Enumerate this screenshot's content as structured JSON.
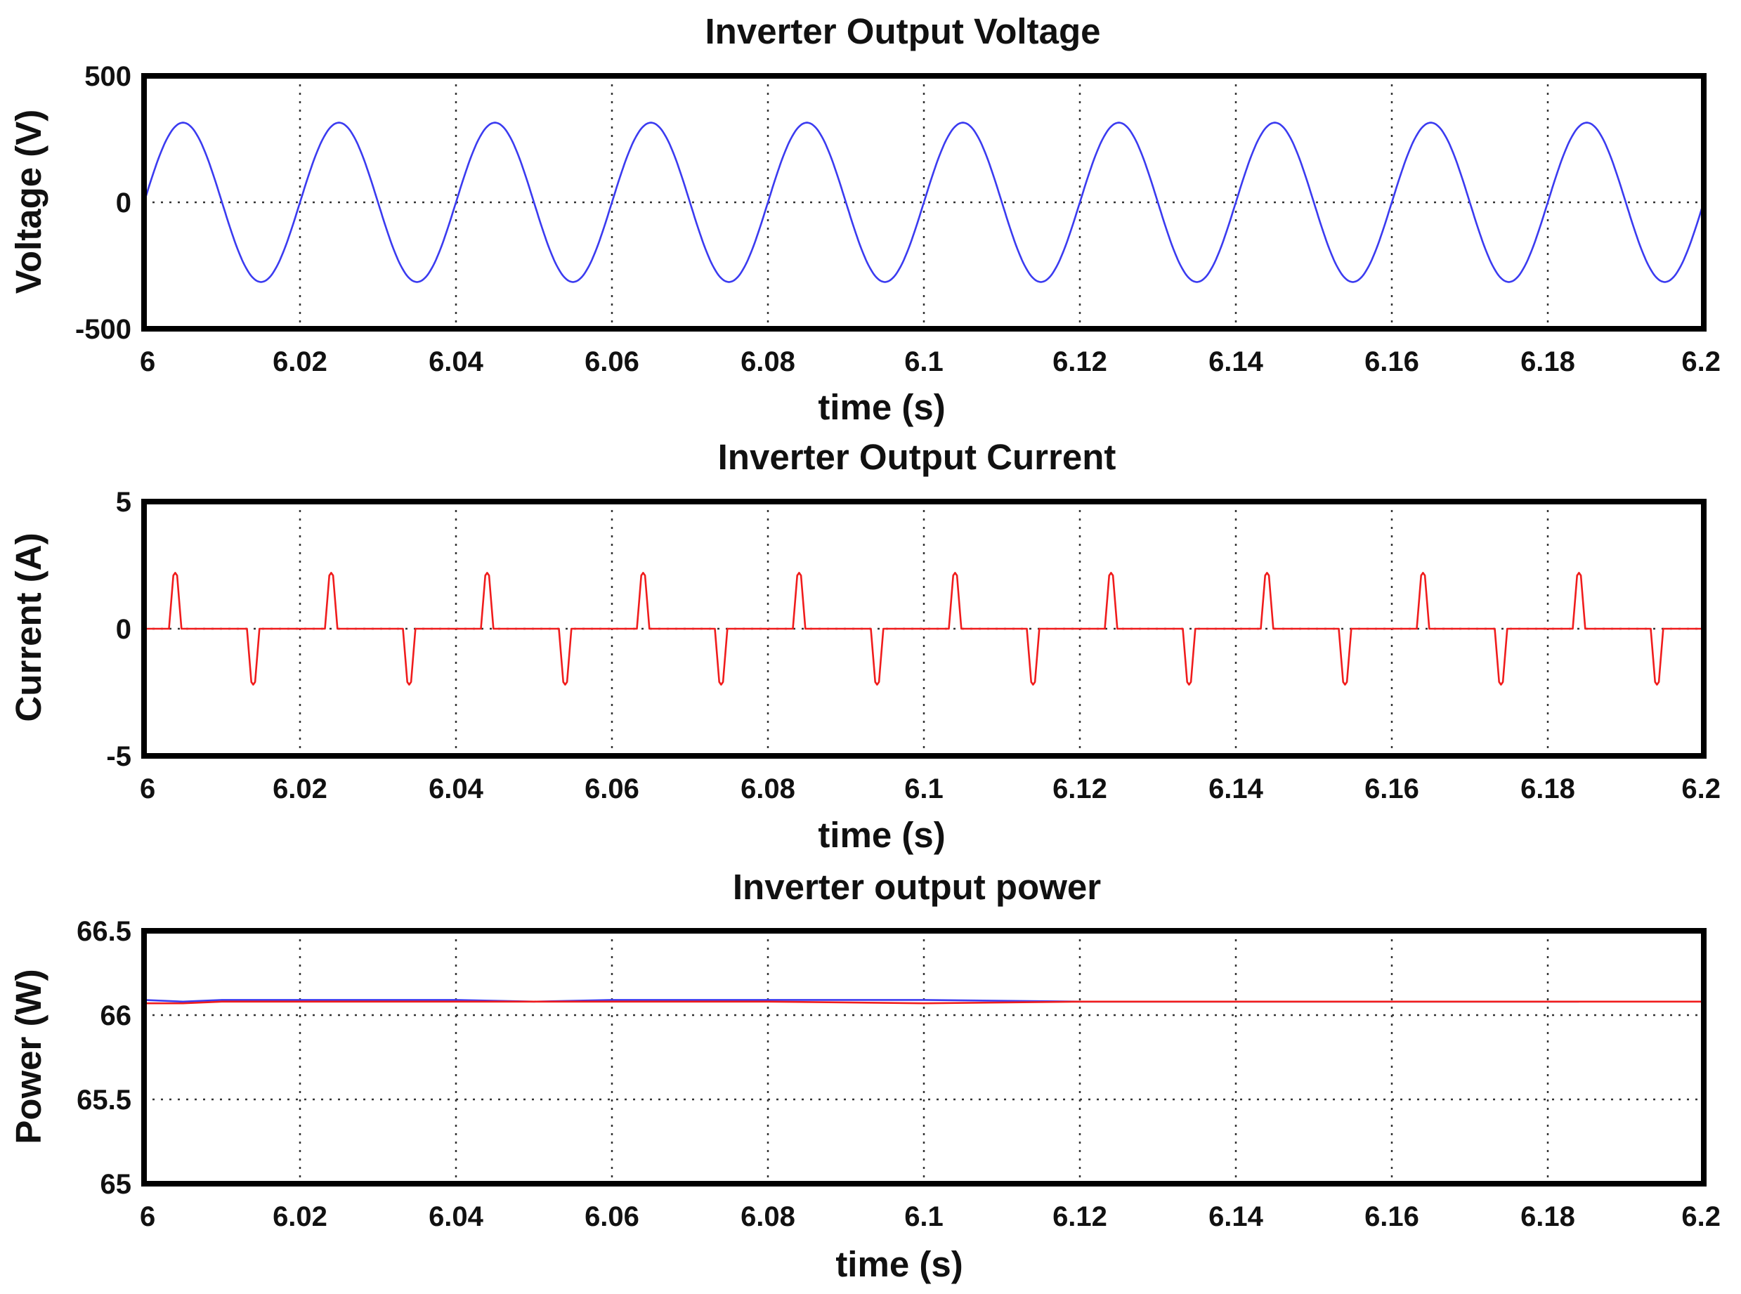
{
  "chart_data": [
    {
      "type": "line",
      "title": "Inverter Output Voltage",
      "xlabel": "time (s)",
      "ylabel": "Voltage (V)",
      "xlim": [
        6,
        6.2
      ],
      "ylim": [
        -500,
        500
      ],
      "xticks": [
        "6",
        "6.02",
        "6.04",
        "6.06",
        "6.08",
        "6.1",
        "6.12",
        "6.14",
        "6.16",
        "6.18",
        "6.2"
      ],
      "yticks": [
        "500",
        "0",
        "-500"
      ],
      "grid": true,
      "series": [
        {
          "color": "#3b3bf0",
          "waveform": "sine",
          "frequency_hz": 50,
          "amplitude": 315,
          "x_start": 6.0,
          "x_end": 6.2
        }
      ]
    },
    {
      "type": "line",
      "title": "Inverter Output Current",
      "xlabel": "time (s)",
      "ylabel": "Current (A)",
      "xlim": [
        6,
        6.2
      ],
      "ylim": [
        -5,
        5
      ],
      "xticks": [
        "6",
        "6.02",
        "6.04",
        "6.06",
        "6.08",
        "6.1",
        "6.12",
        "6.14",
        "6.16",
        "6.18",
        "6.2"
      ],
      "yticks": [
        "5",
        "0",
        "-5"
      ],
      "grid": true,
      "series": [
        {
          "color": "#f01c1c",
          "waveform": "pulses",
          "peak": 2.2,
          "pulse_width_s": 0.0016,
          "positive_pulse_times": [
            6.004,
            6.024,
            6.044,
            6.064,
            6.084,
            6.104,
            6.124,
            6.144,
            6.164,
            6.184
          ],
          "negative_pulse_times": [
            6.014,
            6.034,
            6.054,
            6.074,
            6.094,
            6.114,
            6.134,
            6.154,
            6.174,
            6.194
          ],
          "x_start": 6.0,
          "x_end": 6.2
        }
      ]
    },
    {
      "type": "line",
      "title": "Inverter output power",
      "xlabel": "time (s)",
      "ylabel": "Power (W)",
      "xlim": [
        6,
        6.2
      ],
      "ylim": [
        65,
        66.5
      ],
      "xticks": [
        "6",
        "6.02",
        "6.04",
        "6.06",
        "6.08",
        "6.1",
        "6.12",
        "6.14",
        "6.16",
        "6.18",
        "6.2"
      ],
      "yticks": [
        "66.5",
        "66",
        "65.5",
        "65"
      ],
      "grid": true,
      "series": [
        {
          "color": "#3b3bf0",
          "x": [
            6.0,
            6.005,
            6.01,
            6.02,
            6.03,
            6.04,
            6.05,
            6.06,
            6.08,
            6.1,
            6.12,
            6.134,
            6.14,
            6.16,
            6.184
          ],
          "y": [
            66.09,
            66.08,
            66.09,
            66.09,
            66.09,
            66.09,
            66.08,
            66.09,
            66.09,
            66.09,
            66.08,
            66.08,
            66.08,
            66.08,
            66.08
          ]
        },
        {
          "color": "#f01c1c",
          "x": [
            6.0,
            6.005,
            6.01,
            6.02,
            6.03,
            6.04,
            6.05,
            6.06,
            6.08,
            6.1,
            6.12,
            6.14,
            6.16,
            6.18,
            6.2
          ],
          "y": [
            66.07,
            66.07,
            66.08,
            66.08,
            66.08,
            66.08,
            66.08,
            66.08,
            66.08,
            66.07,
            66.08,
            66.08,
            66.08,
            66.08,
            66.08
          ]
        }
      ]
    }
  ]
}
